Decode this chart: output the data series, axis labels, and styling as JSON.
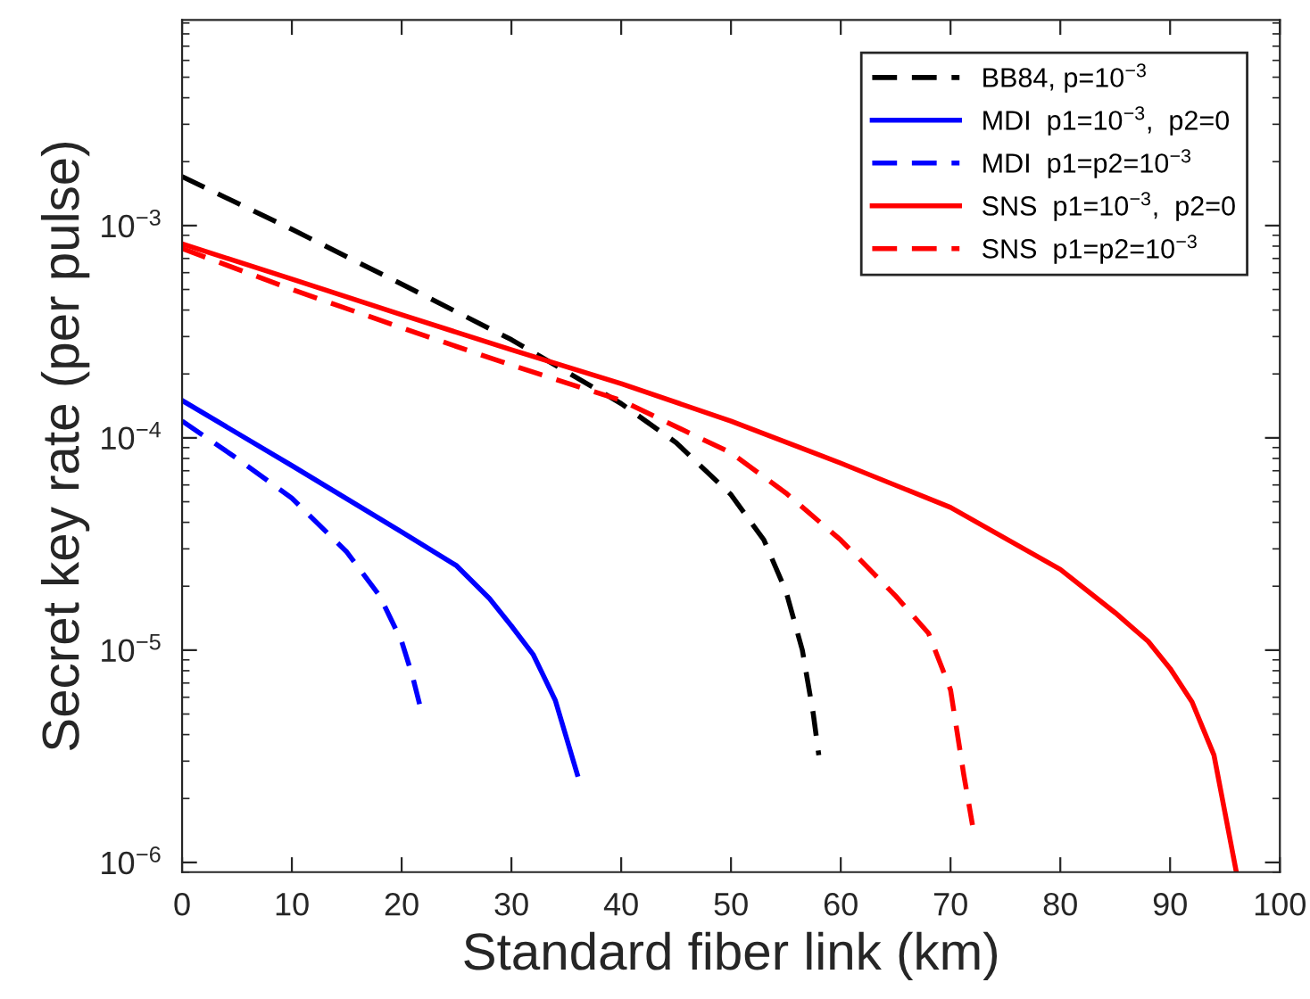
{
  "chart_data": {
    "type": "line",
    "xlabel": "Standard fiber link (km)",
    "ylabel": "Secret key rate (per pulse)",
    "log": "y",
    "legend": "top right",
    "xlim": [
      0,
      100
    ],
    "xticks": [
      0,
      10,
      20,
      30,
      40,
      50,
      60,
      70,
      80,
      90,
      100
    ],
    "ylim": [
      9e-07,
      0.0093
    ],
    "yticks": [
      {
        "value": 1e-06,
        "label": "10$^{−6}$"
      },
      {
        "value": 1e-05,
        "label": "10$^{−5}$"
      },
      {
        "value": 0.0001,
        "label": "10$^{−4}$"
      },
      {
        "value": 0.001,
        "label": "10$^{−3}$"
      }
    ],
    "series": [
      {
        "name": "BB84, p=10$^{−3}$",
        "color": "#000000",
        "line_style": "dashed",
        "x": [
          0,
          10,
          20,
          30,
          40,
          45,
          50,
          53,
          55,
          56.5,
          57.5,
          58
        ],
        "values": [
          0.0017,
          0.00096,
          0.00053,
          0.00029,
          0.000145,
          9.5e-05,
          5.4e-05,
          3.3e-05,
          1.9e-05,
          1e-05,
          5e-06,
          3.2e-06
        ]
      },
      {
        "name": "MDI  p1=10$^{−3}$,  p2=0",
        "color": "#0000ff",
        "line_style": "solid",
        "x": [
          0,
          10,
          20,
          25,
          28,
          30,
          32,
          34,
          36
        ],
        "values": [
          0.00015,
          7.4e-05,
          3.6e-05,
          2.5e-05,
          1.75e-05,
          1.3e-05,
          9.5e-06,
          5.8e-06,
          2.6e-06
        ]
      },
      {
        "name": "MDI  p1=p2=10$^{−3}$",
        "color": "#0000ff",
        "line_style": "dashed",
        "x": [
          0,
          5,
          10,
          15,
          18,
          20,
          21,
          21.7
        ],
        "values": [
          0.00012,
          8e-05,
          5.2e-05,
          2.9e-05,
          1.8e-05,
          1.1e-05,
          7.5e-06,
          5.4e-06
        ]
      },
      {
        "name": "SNS  p1=10$^{−3}$,  p2=0",
        "color": "#ff0000",
        "line_style": "solid",
        "x": [
          0,
          10,
          20,
          30,
          40,
          50,
          60,
          70,
          80,
          85,
          88,
          90,
          92,
          94,
          96
        ],
        "values": [
          0.00082,
          0.00056,
          0.00038,
          0.00026,
          0.00018,
          0.00012,
          7.6e-05,
          4.7e-05,
          2.4e-05,
          1.5e-05,
          1.1e-05,
          8.2e-06,
          5.7e-06,
          3.2e-06,
          9.2e-07
        ]
      },
      {
        "name": "SNS  p1=p2=10$^{−3}$",
        "color": "#ff0000",
        "line_style": "dashed",
        "x": [
          0,
          10,
          20,
          30,
          40,
          50,
          55,
          60,
          65,
          68,
          70,
          71.2,
          72
        ],
        "values": [
          0.00078,
          0.0005,
          0.00033,
          0.00022,
          0.00015,
          8.5e-05,
          5.5e-05,
          3.3e-05,
          1.8e-05,
          1.2e-05,
          6.5e-06,
          2.6e-06,
          1.5e-06
        ]
      }
    ]
  }
}
